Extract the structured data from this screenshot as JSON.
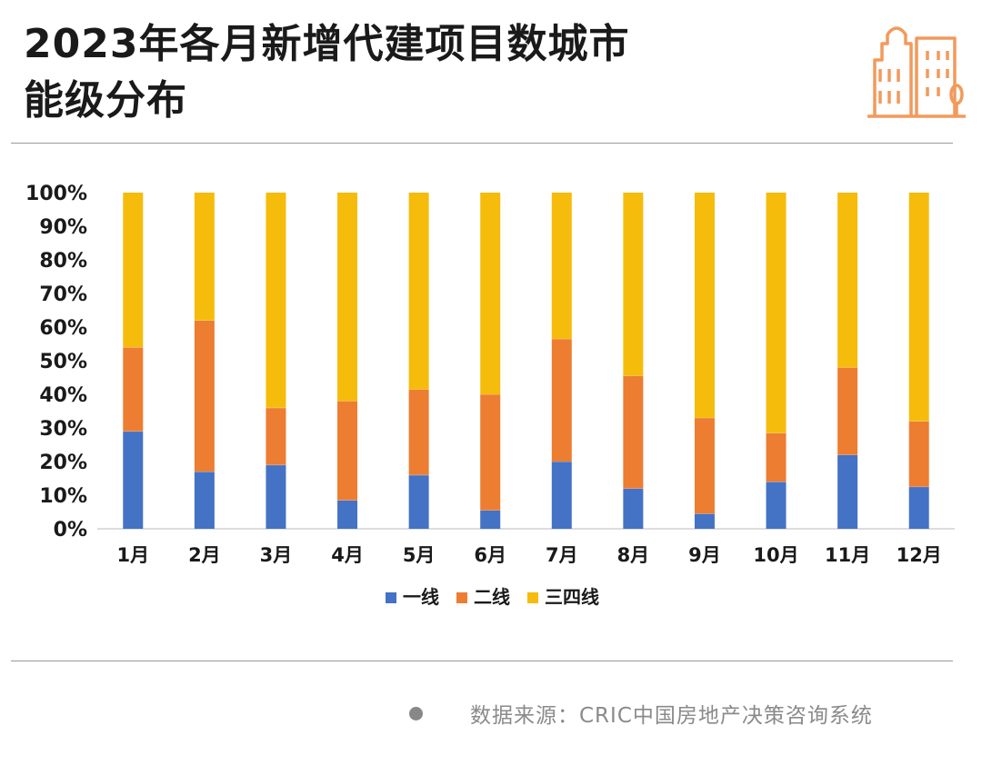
{
  "title": {
    "line1": "2023年各月新增代建项目数城市",
    "line2": "能级分布"
  },
  "logo": {
    "icon": "city-buildings-icon",
    "color": "#F29A5B"
  },
  "source": {
    "text": "数据来源：CRIC中国房地产决策咨询系统"
  },
  "colors": {
    "tier1": "#4472C4",
    "tier2": "#ED7D31",
    "tier34": "#F5BC0C",
    "axis": "#d0d0d0",
    "text": "#1a1a1a"
  },
  "chart_data": {
    "type": "bar",
    "stacked": true,
    "categories": [
      "1月",
      "2月",
      "3月",
      "4月",
      "5月",
      "6月",
      "7月",
      "8月",
      "9月",
      "10月",
      "11月",
      "12月"
    ],
    "series": [
      {
        "name": "一线",
        "values": [
          29,
          17,
          19,
          8.5,
          16,
          5.5,
          20,
          12,
          4.5,
          14,
          22,
          12.5
        ]
      },
      {
        "name": "二线",
        "values": [
          25,
          45,
          17,
          29.5,
          25.5,
          34.5,
          36.5,
          33.5,
          28.5,
          14.5,
          26,
          19.5
        ]
      },
      {
        "name": "三四线",
        "values": [
          46,
          38,
          64,
          62,
          58.5,
          60,
          43.5,
          54.5,
          67,
          71.5,
          52,
          68
        ]
      }
    ],
    "yticks": [
      "0%",
      "10%",
      "20%",
      "30%",
      "40%",
      "50%",
      "60%",
      "70%",
      "80%",
      "90%",
      "100%"
    ],
    "ylim": [
      0,
      100
    ],
    "grid": false,
    "legend_position": "bottom"
  }
}
